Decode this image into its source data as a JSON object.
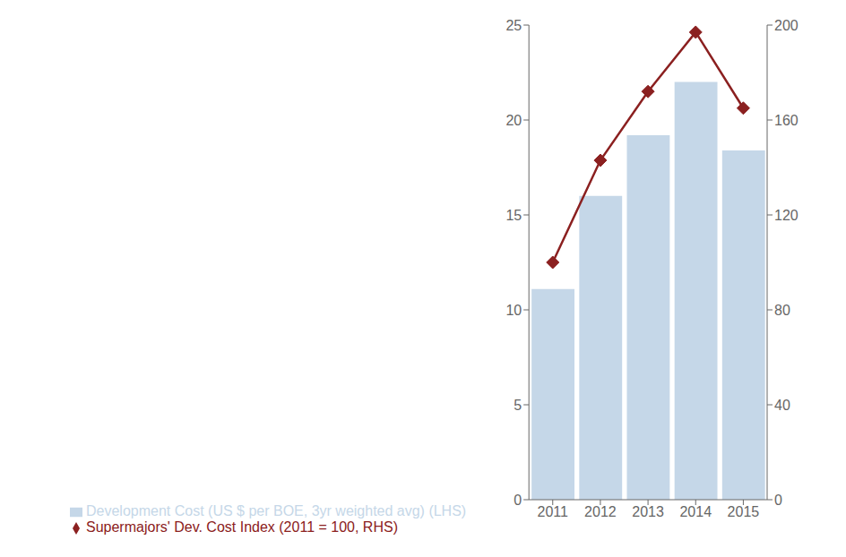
{
  "chart_data": {
    "type": "bar",
    "categories": [
      "2011",
      "2012",
      "2013",
      "2014",
      "2015"
    ],
    "series": [
      {
        "name": "Development Cost (US $ per BOE, 3yr weighted avg) (LHS)",
        "type": "bar",
        "color": "#c5d7e8",
        "values": [
          11.1,
          16.0,
          19.2,
          22.0,
          18.4
        ]
      },
      {
        "name": "Supermajors' Dev. Cost Index (2011 = 100, RHS)",
        "type": "line",
        "axis": "y2",
        "color": "#8B2020",
        "marker": "diamond",
        "values": [
          100,
          143,
          172,
          197,
          165
        ]
      }
    ],
    "ylim": [
      0,
      25
    ],
    "yticks": [
      0,
      5,
      10,
      15,
      20,
      25
    ],
    "y2lim": [
      0,
      200
    ],
    "y2ticks": [
      0,
      40,
      80,
      120,
      160,
      200
    ],
    "grid": false,
    "legend": "bottom"
  }
}
